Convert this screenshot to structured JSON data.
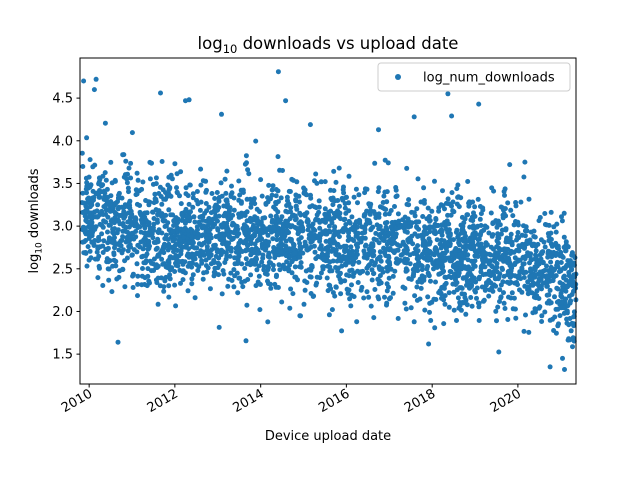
{
  "chart_data": {
    "type": "scatter",
    "title_base": "log",
    "title_sub": "10",
    "title_rest": " downloads vs upload date",
    "xlabel": "Device upload date",
    "ylabel_base": "log",
    "ylabel_sub": "10",
    "ylabel_rest": " downloads",
    "xlim": [
      "2009-10-15",
      "2021-05-10"
    ],
    "ylim": [
      1.15,
      4.97
    ],
    "x_ticks": [
      "2010",
      "2012",
      "2014",
      "2016",
      "2018",
      "2020"
    ],
    "y_ticks": [
      "1.5",
      "2.0",
      "2.5",
      "3.0",
      "3.5",
      "4.0",
      "4.5"
    ],
    "grid": false,
    "legend_position": "top-right",
    "series": [
      {
        "name": "log_num_downloads",
        "color": "#1f77b4",
        "trend": [
          [
            "2009-11-01",
            3.2
          ],
          [
            "2010-06-01",
            3.05
          ],
          [
            "2011-06-01",
            2.92
          ],
          [
            "2012-06-01",
            2.83
          ],
          [
            "2013-06-01",
            2.9
          ],
          [
            "2014-06-01",
            2.86
          ],
          [
            "2015-06-01",
            2.82
          ],
          [
            "2016-06-01",
            2.82
          ],
          [
            "2017-06-01",
            2.72
          ],
          [
            "2018-06-01",
            2.7
          ],
          [
            "2019-06-01",
            2.67
          ],
          [
            "2020-06-01",
            2.52
          ],
          [
            "2021-05-10",
            2.28
          ]
        ],
        "spread": 0.33,
        "count": 3000,
        "extreme_points": [
          [
            "2009-11-15",
            4.7
          ],
          [
            "2010-03-01",
            4.72
          ],
          [
            "2010-02-15",
            4.6
          ],
          [
            "2011-09-01",
            4.56
          ],
          [
            "2012-04-01",
            4.47
          ],
          [
            "2012-05-01",
            4.48
          ],
          [
            "2013-02-01",
            4.31
          ],
          [
            "2014-06-01",
            4.81
          ],
          [
            "2014-08-01",
            4.47
          ],
          [
            "2015-03-01",
            4.19
          ],
          [
            "2016-10-01",
            4.13
          ],
          [
            "2017-08-01",
            4.28
          ],
          [
            "2018-05-15",
            4.55
          ],
          [
            "2018-06-15",
            4.29
          ],
          [
            "2019-02-01",
            4.43
          ],
          [
            "2020-03-01",
            3.75
          ],
          [
            "2014-12-01",
            1.95
          ],
          [
            "2020-10-01",
            1.35
          ],
          [
            "2021-02-01",
            1.32
          ],
          [
            "2021-01-15",
            1.45
          ]
        ]
      }
    ]
  }
}
